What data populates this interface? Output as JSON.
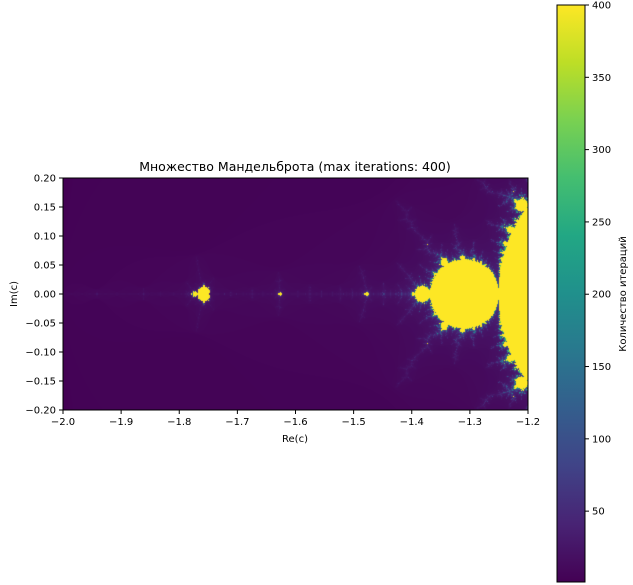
{
  "chart_data": {
    "type": "heatmap",
    "title": "Множество Мандельброта (max iterations: 400)",
    "xlabel": "Re(c)",
    "ylabel": "Im(c)",
    "xlim": [
      -2.0,
      -1.2
    ],
    "ylim": [
      -0.2,
      0.2
    ],
    "x_ticks": [
      -2.0,
      -1.9,
      -1.8,
      -1.7,
      -1.6,
      -1.5,
      -1.4,
      -1.3,
      -1.2
    ],
    "x_tick_labels": [
      "−2.0",
      "−1.9",
      "−1.8",
      "−1.7",
      "−1.6",
      "−1.5",
      "−1.4",
      "−1.3",
      "−1.2"
    ],
    "y_ticks": [
      0.2,
      0.15,
      0.1,
      0.05,
      0.0,
      -0.05,
      -0.1,
      -0.15,
      -0.2
    ],
    "y_tick_labels": [
      "0.20",
      "0.15",
      "0.10",
      "0.05",
      "0.00",
      "−0.05",
      "−0.10",
      "−0.15",
      "−0.20"
    ],
    "colorbar": {
      "label": "Количество итераций",
      "colormap": "viridis",
      "range": [
        1,
        400
      ],
      "ticks": [
        50,
        100,
        150,
        200,
        250,
        300,
        350,
        400
      ],
      "tick_labels": [
        "50",
        "100",
        "150",
        "200",
        "250",
        "300",
        "350",
        "400"
      ]
    },
    "max_iterations": 400,
    "background_color": "#440154",
    "set_color": "#fde725"
  }
}
